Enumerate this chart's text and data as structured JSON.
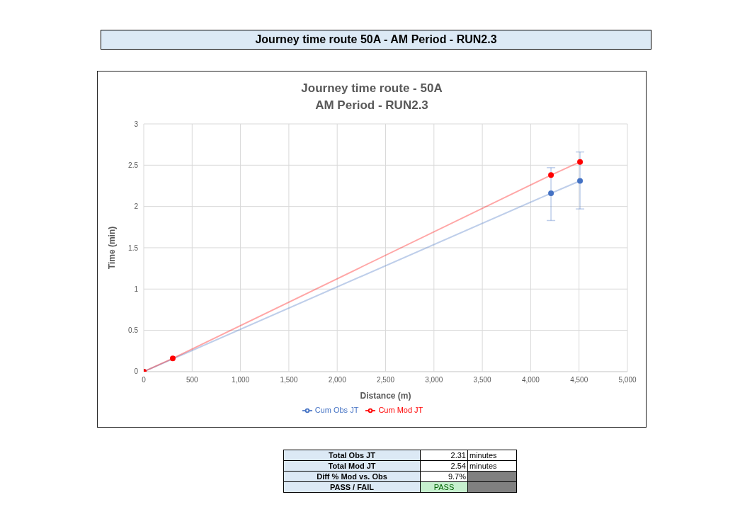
{
  "chart_data": {
    "type": "line",
    "title": "Journey time route - 50A\nAM Period - RUN2.3",
    "xlabel": "Distance (m)",
    "ylabel": "Time (min)",
    "series": [
      {
        "name": "Cum Obs JT",
        "color": "#4472c4",
        "x": [
          0,
          4210,
          4510
        ],
        "values": [
          0,
          2.16,
          2.31
        ],
        "errors": [
          null,
          [
            1.83,
            2.47
          ],
          [
            1.97,
            2.66
          ]
        ]
      },
      {
        "name": "Cum Mod JT",
        "color": "#ff0000",
        "x": [
          0,
          300,
          4210,
          4510
        ],
        "values": [
          0,
          0.16,
          2.38,
          2.54
        ]
      }
    ],
    "xlim": [
      0,
      5000
    ],
    "xticks": [
      0,
      500,
      {
        "value": 1000,
        "label": "1,000"
      },
      {
        "value": 1500,
        "label": "1,500"
      },
      {
        "value": 2000,
        "label": "2,000"
      },
      {
        "value": 2500,
        "label": "2,500"
      },
      {
        "value": 3000,
        "label": "3,000"
      },
      {
        "value": 3500,
        "label": "3,500"
      },
      {
        "value": 4000,
        "label": "4,000"
      },
      {
        "value": 4500,
        "label": "4,500"
      },
      {
        "value": 5000,
        "label": "5,000"
      }
    ],
    "ylim": [
      0,
      3
    ],
    "yticks": [
      0,
      0.5,
      1,
      1.5,
      2,
      2.5,
      3
    ],
    "grid": true,
    "legend": "bottom",
    "marker": "circle",
    "line_style": "solid",
    "annotations": [
      "Journey time route 50A - AM Period - RUN2.3",
      "Total Obs JT",
      "2.31",
      "minutes",
      "Total Mod JT",
      "2.54",
      "minutes",
      "Diff % Mod vs. Obs",
      "9.7%",
      "PASS / FAIL",
      "PASS"
    ]
  }
}
